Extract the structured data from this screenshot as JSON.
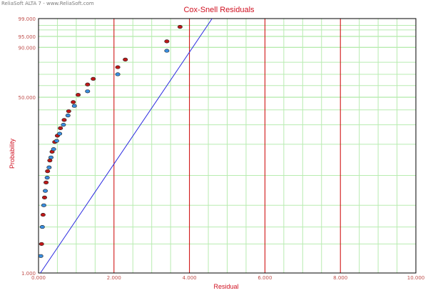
{
  "watermark": "ReliaSoft ALTA 7 - www.ReliaSoft.com",
  "chart_data": {
    "type": "scatter",
    "title": "Cox-Snell Residuals",
    "xlabel": "Residual",
    "ylabel": "Probability",
    "xlim": [
      0,
      10
    ],
    "y_scale": "weibull-probability",
    "ylim_percent": [
      1,
      99
    ],
    "x_tick_labels": [
      "0.000",
      "2.000",
      "4.000",
      "6.000",
      "8.000",
      "10.000"
    ],
    "x_ticks": [
      0,
      2,
      4,
      6,
      8,
      10
    ],
    "y_tick_labels": [
      "99.000",
      "95.000",
      "90.000",
      "50.000",
      "1.000"
    ],
    "y_ticks": [
      99,
      95,
      90,
      50,
      1
    ],
    "grid": true,
    "colors": {
      "major_grid": "#cc0000",
      "minor_grid": "#b8ecb0",
      "fit_line": "#2a2ae0",
      "series_red": "#c01818",
      "series_blue": "#3a8ee0",
      "title": "#d01020"
    },
    "fit_line": {
      "x": [
        0.05,
        4.6
      ],
      "y": [
        1.0,
        99.0
      ]
    },
    "series": [
      {
        "color": "red",
        "points": [
          [
            0.08,
            2.0
          ],
          [
            0.12,
            4.0
          ],
          [
            0.16,
            6.0
          ],
          [
            0.2,
            8.5
          ],
          [
            0.24,
            11.0
          ],
          [
            0.3,
            14.0
          ],
          [
            0.36,
            17.0
          ],
          [
            0.43,
            21.0
          ],
          [
            0.5,
            24.0
          ],
          [
            0.58,
            28.0
          ],
          [
            0.68,
            33.0
          ],
          [
            0.8,
            39.0
          ],
          [
            0.92,
            46.0
          ],
          [
            1.05,
            52.0
          ],
          [
            1.3,
            61.0
          ],
          [
            1.45,
            66.0
          ],
          [
            2.1,
            76.0
          ],
          [
            2.3,
            82.0
          ],
          [
            3.4,
            93.0
          ],
          [
            3.75,
            97.7
          ]
        ]
      },
      {
        "color": "blue",
        "points": [
          [
            0.06,
            1.5
          ],
          [
            0.1,
            3.0
          ],
          [
            0.14,
            5.0
          ],
          [
            0.18,
            7.0
          ],
          [
            0.23,
            9.5
          ],
          [
            0.28,
            12.0
          ],
          [
            0.33,
            15.0
          ],
          [
            0.4,
            18.0
          ],
          [
            0.48,
            21.5
          ],
          [
            0.56,
            25.0
          ],
          [
            0.66,
            30.0
          ],
          [
            0.78,
            36.0
          ],
          [
            0.95,
            43.0
          ],
          [
            1.3,
            55.0
          ],
          [
            2.1,
            70.0
          ],
          [
            3.4,
            88.0
          ]
        ]
      }
    ]
  }
}
